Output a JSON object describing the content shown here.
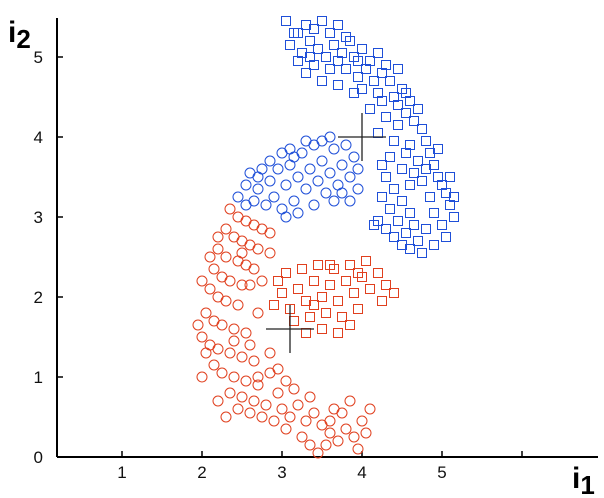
{
  "chart_data": {
    "type": "scatter",
    "title": "",
    "xlabel": "i",
    "xlabel_sub": "1",
    "ylabel": "i",
    "ylabel_sub": "2",
    "xlim": [
      0,
      6.5
    ],
    "ylim": [
      0,
      5.5
    ],
    "xticks": [
      1,
      2,
      3,
      4,
      5
    ],
    "yticks": [
      0,
      1,
      2,
      3,
      4,
      5
    ],
    "grid": false,
    "legend": "none",
    "series": [
      {
        "marker": "square",
        "color": "#1f4fd8",
        "points": [
          [
            3.05,
            5.45
          ],
          [
            3.2,
            5.3
          ],
          [
            3.3,
            5.4
          ],
          [
            3.4,
            5.35
          ],
          [
            3.5,
            5.45
          ],
          [
            3.6,
            5.3
          ],
          [
            3.7,
            5.4
          ],
          [
            3.8,
            5.25
          ],
          [
            3.1,
            5.15
          ],
          [
            3.25,
            5.05
          ],
          [
            3.35,
            5.2
          ],
          [
            3.45,
            5.1
          ],
          [
            3.55,
            5.0
          ],
          [
            3.65,
            5.15
          ],
          [
            3.75,
            5.05
          ],
          [
            3.85,
            5.2
          ],
          [
            3.9,
            5.0
          ],
          [
            4.0,
            5.1
          ],
          [
            4.1,
            4.95
          ],
          [
            4.2,
            5.05
          ],
          [
            4.3,
            4.9
          ],
          [
            4.05,
            4.85
          ],
          [
            3.95,
            4.75
          ],
          [
            4.15,
            4.7
          ],
          [
            4.25,
            4.8
          ],
          [
            4.35,
            4.7
          ],
          [
            4.45,
            4.85
          ],
          [
            4.5,
            4.6
          ],
          [
            4.4,
            4.5
          ],
          [
            4.6,
            4.45
          ],
          [
            4.55,
            4.3
          ],
          [
            4.65,
            4.2
          ],
          [
            4.7,
            4.35
          ],
          [
            4.45,
            4.15
          ],
          [
            4.75,
            4.1
          ],
          [
            4.8,
            3.95
          ],
          [
            4.6,
            3.9
          ],
          [
            4.85,
            3.8
          ],
          [
            4.9,
            3.65
          ],
          [
            4.7,
            3.7
          ],
          [
            4.95,
            3.5
          ],
          [
            5.0,
            3.4
          ],
          [
            4.75,
            3.45
          ],
          [
            5.05,
            3.3
          ],
          [
            4.85,
            3.25
          ],
          [
            5.1,
            3.15
          ],
          [
            5.15,
            3.0
          ],
          [
            4.9,
            3.05
          ],
          [
            5.0,
            2.9
          ],
          [
            4.8,
            2.85
          ],
          [
            5.05,
            2.75
          ],
          [
            4.7,
            2.7
          ],
          [
            4.9,
            2.65
          ],
          [
            4.6,
            2.6
          ],
          [
            4.75,
            2.55
          ],
          [
            4.5,
            2.65
          ],
          [
            4.4,
            2.75
          ],
          [
            4.55,
            2.8
          ],
          [
            4.3,
            2.85
          ],
          [
            4.45,
            2.95
          ],
          [
            4.2,
            2.95
          ],
          [
            4.35,
            3.1
          ],
          [
            4.5,
            3.2
          ],
          [
            4.25,
            3.25
          ],
          [
            4.4,
            3.35
          ],
          [
            4.6,
            3.4
          ],
          [
            4.3,
            3.5
          ],
          [
            4.5,
            3.6
          ],
          [
            4.35,
            3.75
          ],
          [
            4.55,
            3.8
          ],
          [
            4.4,
            3.95
          ],
          [
            4.2,
            4.05
          ],
          [
            4.3,
            4.25
          ],
          [
            4.1,
            4.35
          ],
          [
            4.2,
            4.55
          ],
          [
            3.9,
            4.55
          ],
          [
            3.7,
            4.65
          ],
          [
            3.8,
            4.85
          ],
          [
            3.6,
            4.85
          ],
          [
            3.5,
            4.7
          ],
          [
            3.4,
            4.9
          ],
          [
            3.3,
            4.8
          ],
          [
            3.2,
            4.95
          ],
          [
            3.15,
            5.3
          ],
          [
            3.35,
            5.0
          ],
          [
            3.7,
            4.95
          ],
          [
            4.0,
            4.6
          ],
          [
            4.65,
            3.55
          ],
          [
            4.15,
            2.9
          ],
          [
            4.6,
            3.05
          ],
          [
            4.8,
            3.6
          ],
          [
            4.95,
            3.85
          ],
          [
            4.45,
            4.4
          ],
          [
            4.25,
            4.45
          ],
          [
            5.1,
            3.5
          ],
          [
            4.25,
            3.65
          ],
          [
            4.65,
            2.9
          ],
          [
            5.15,
            3.25
          ],
          [
            3.95,
            4.95
          ],
          [
            4.55,
            4.55
          ]
        ]
      },
      {
        "marker": "circle",
        "color": "#1f4fd8",
        "points": [
          [
            2.45,
            3.25
          ],
          [
            2.55,
            3.4
          ],
          [
            2.6,
            3.55
          ],
          [
            2.7,
            3.35
          ],
          [
            2.75,
            3.6
          ],
          [
            2.85,
            3.45
          ],
          [
            2.9,
            3.25
          ],
          [
            2.95,
            3.6
          ],
          [
            3.0,
            3.8
          ],
          [
            3.05,
            3.4
          ],
          [
            3.1,
            3.65
          ],
          [
            3.15,
            3.2
          ],
          [
            3.2,
            3.5
          ],
          [
            3.25,
            3.8
          ],
          [
            3.3,
            3.35
          ],
          [
            3.35,
            3.6
          ],
          [
            3.4,
            3.9
          ],
          [
            3.45,
            3.45
          ],
          [
            3.5,
            3.7
          ],
          [
            3.55,
            3.3
          ],
          [
            3.6,
            3.55
          ],
          [
            3.65,
            3.85
          ],
          [
            3.7,
            3.4
          ],
          [
            3.75,
            3.65
          ],
          [
            3.8,
            3.9
          ],
          [
            3.85,
            3.5
          ],
          [
            3.9,
            3.75
          ],
          [
            3.95,
            3.6
          ],
          [
            3.65,
            3.2
          ],
          [
            3.4,
            3.15
          ],
          [
            3.2,
            3.05
          ],
          [
            3.0,
            3.1
          ],
          [
            2.8,
            3.15
          ],
          [
            2.65,
            3.2
          ],
          [
            3.5,
            3.95
          ],
          [
            3.3,
            3.95
          ],
          [
            3.1,
            3.85
          ],
          [
            2.85,
            3.7
          ],
          [
            3.75,
            3.3
          ],
          [
            3.95,
            3.35
          ],
          [
            2.55,
            3.15
          ],
          [
            3.05,
            3.0
          ],
          [
            3.6,
            4.0
          ],
          [
            3.85,
            3.2
          ],
          [
            3.15,
            3.75
          ],
          [
            2.7,
            3.5
          ]
        ]
      },
      {
        "marker": "square",
        "color": "#e0401f",
        "points": [
          [
            2.9,
            1.9
          ],
          [
            3.0,
            2.05
          ],
          [
            3.1,
            1.85
          ],
          [
            3.2,
            2.1
          ],
          [
            3.3,
            1.95
          ],
          [
            3.4,
            2.2
          ],
          [
            3.5,
            2.0
          ],
          [
            3.6,
            2.15
          ],
          [
            3.7,
            1.95
          ],
          [
            3.8,
            2.2
          ],
          [
            3.9,
            2.05
          ],
          [
            4.0,
            2.25
          ],
          [
            4.1,
            2.1
          ],
          [
            4.2,
            2.3
          ],
          [
            4.3,
            2.15
          ],
          [
            4.4,
            2.05
          ],
          [
            3.05,
            2.3
          ],
          [
            3.25,
            2.35
          ],
          [
            3.45,
            2.4
          ],
          [
            3.65,
            2.35
          ],
          [
            3.85,
            2.4
          ],
          [
            4.05,
            2.45
          ],
          [
            3.15,
            1.7
          ],
          [
            3.35,
            1.75
          ],
          [
            3.55,
            1.8
          ],
          [
            3.75,
            1.75
          ],
          [
            3.95,
            1.85
          ],
          [
            3.5,
            1.6
          ],
          [
            3.7,
            1.55
          ],
          [
            3.3,
            1.55
          ],
          [
            2.95,
            2.2
          ],
          [
            3.6,
            2.4
          ],
          [
            4.25,
            1.95
          ],
          [
            3.85,
            1.65
          ],
          [
            3.4,
            1.9
          ],
          [
            3.95,
            2.3
          ]
        ]
      },
      {
        "marker": "circle",
        "color": "#e0401f",
        "points": [
          [
            2.35,
            3.1
          ],
          [
            2.45,
            3.0
          ],
          [
            2.55,
            2.95
          ],
          [
            2.65,
            2.9
          ],
          [
            2.75,
            2.85
          ],
          [
            2.85,
            2.8
          ],
          [
            2.3,
            2.85
          ],
          [
            2.4,
            2.75
          ],
          [
            2.5,
            2.7
          ],
          [
            2.6,
            2.65
          ],
          [
            2.7,
            2.6
          ],
          [
            2.2,
            2.6
          ],
          [
            2.3,
            2.5
          ],
          [
            2.45,
            2.45
          ],
          [
            2.55,
            2.4
          ],
          [
            2.65,
            2.35
          ],
          [
            2.15,
            2.35
          ],
          [
            2.25,
            2.25
          ],
          [
            2.35,
            2.2
          ],
          [
            2.5,
            2.15
          ],
          [
            2.1,
            2.1
          ],
          [
            2.2,
            2.0
          ],
          [
            2.3,
            1.95
          ],
          [
            2.45,
            1.9
          ],
          [
            2.05,
            1.8
          ],
          [
            2.15,
            1.7
          ],
          [
            2.25,
            1.65
          ],
          [
            2.4,
            1.6
          ],
          [
            2.55,
            1.55
          ],
          [
            2.0,
            1.5
          ],
          [
            2.1,
            1.4
          ],
          [
            2.2,
            1.35
          ],
          [
            2.35,
            1.3
          ],
          [
            2.5,
            1.25
          ],
          [
            2.65,
            1.2
          ],
          [
            2.15,
            1.15
          ],
          [
            2.25,
            1.05
          ],
          [
            2.4,
            1.0
          ],
          [
            2.55,
            0.95
          ],
          [
            2.7,
            0.9
          ],
          [
            2.85,
            1.05
          ],
          [
            2.35,
            0.8
          ],
          [
            2.5,
            0.75
          ],
          [
            2.65,
            0.7
          ],
          [
            2.8,
            0.65
          ],
          [
            2.95,
            0.8
          ],
          [
            3.0,
            0.6
          ],
          [
            3.1,
            0.5
          ],
          [
            3.2,
            0.65
          ],
          [
            3.3,
            0.45
          ],
          [
            3.4,
            0.55
          ],
          [
            3.5,
            0.4
          ],
          [
            3.6,
            0.3
          ],
          [
            3.7,
            0.2
          ],
          [
            3.8,
            0.35
          ],
          [
            3.9,
            0.25
          ],
          [
            4.0,
            0.45
          ],
          [
            4.1,
            0.6
          ],
          [
            3.75,
            0.55
          ],
          [
            3.85,
            0.7
          ],
          [
            3.55,
            0.15
          ],
          [
            3.45,
            0.05
          ],
          [
            3.25,
            0.25
          ],
          [
            3.05,
            0.35
          ],
          [
            2.9,
            0.45
          ],
          [
            2.75,
            0.5
          ],
          [
            2.6,
            0.55
          ],
          [
            2.45,
            0.6
          ],
          [
            2.3,
            0.5
          ],
          [
            2.2,
            0.7
          ],
          [
            2.0,
            1.0
          ],
          [
            2.05,
            1.3
          ],
          [
            1.95,
            1.65
          ],
          [
            2.0,
            2.2
          ],
          [
            2.1,
            2.5
          ],
          [
            2.2,
            2.75
          ],
          [
            2.6,
            2.15
          ],
          [
            2.7,
            1.8
          ],
          [
            2.6,
            1.4
          ],
          [
            2.85,
            1.3
          ],
          [
            2.95,
            1.1
          ],
          [
            3.05,
            0.95
          ],
          [
            3.35,
            0.75
          ],
          [
            3.65,
            0.6
          ],
          [
            3.95,
            0.1
          ],
          [
            3.35,
            0.15
          ],
          [
            2.75,
            2.2
          ],
          [
            2.85,
            2.55
          ],
          [
            2.4,
            1.45
          ],
          [
            2.7,
            1.0
          ],
          [
            3.15,
            0.85
          ],
          [
            4.05,
            0.3
          ],
          [
            3.6,
            0.45
          ],
          [
            2.5,
            2.55
          ]
        ]
      }
    ],
    "annotations": [
      {
        "type": "cross",
        "x": 4.0,
        "y": 4.0,
        "half_width": 0.3,
        "half_height": 0.3
      },
      {
        "type": "cross",
        "x": 3.1,
        "y": 1.6,
        "half_width": 0.3,
        "half_height": 0.3
      }
    ]
  }
}
